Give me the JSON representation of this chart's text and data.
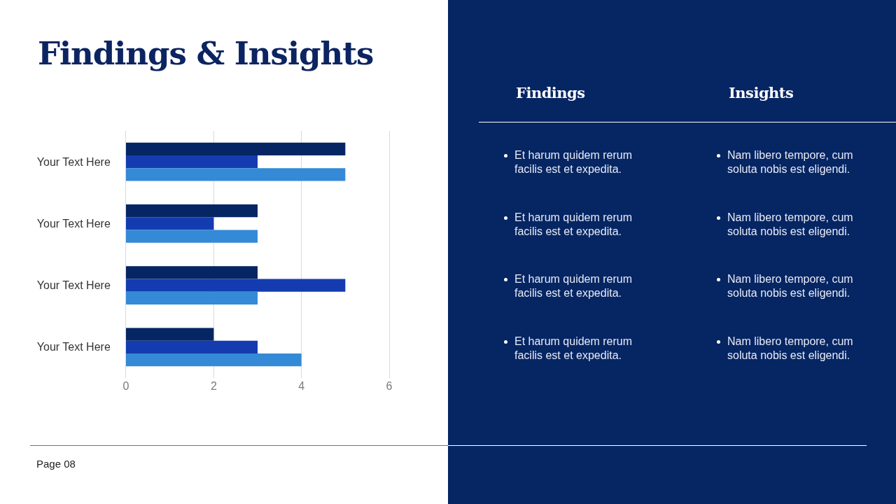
{
  "chart_data": [
    {
      "type": "bar",
      "title": "Findings & Insights",
      "orientation": "horizontal",
      "categories": [
        "Your Text Here",
        "Your Text Here",
        "Your Text Here",
        "Your Text Here"
      ],
      "series": [
        {
          "color": "#062563",
          "values": [
            5,
            3,
            3,
            2
          ]
        },
        {
          "color": "#143cb0",
          "values": [
            3,
            2,
            5,
            3
          ]
        },
        {
          "color": "#348ad6",
          "values": [
            5,
            3,
            3,
            4
          ]
        }
      ],
      "xlim": [
        0,
        6
      ],
      "xticks": [
        0,
        2,
        4,
        6
      ],
      "grid": "x",
      "annotations": [
        "Page 08"
      ]
    },
    {
      "type": "other",
      "title": "Findings",
      "annotations": [
        "Et harum quidem rerum facilis est et expedita.",
        "Et harum quidem rerum facilis est et expedita.",
        "Et harum quidem rerum facilis est et expedita.",
        "Et harum quidem rerum facilis est et expedita."
      ]
    },
    {
      "type": "other",
      "title": "Insights",
      "annotations": [
        "Nam libero tempore, cum soluta nobis est eligendi.",
        "Nam libero tempore, cum soluta nobis est eligendi.",
        "Nam libero tempore, cum soluta nobis est eligendi.",
        "Nam libero tempore, cum soluta nobis est eligendi."
      ]
    }
  ]
}
